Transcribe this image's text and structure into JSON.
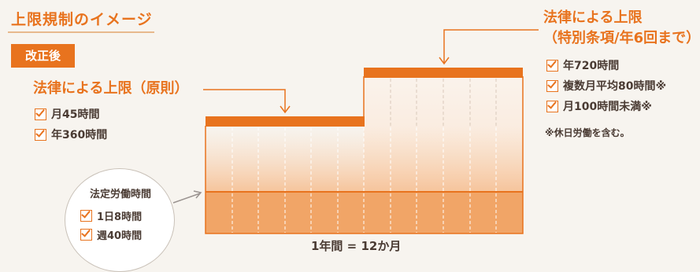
{
  "title": "上限規制のイメージ",
  "badge": "改正後",
  "principle": {
    "heading": "法律による上限（原則）",
    "items": [
      "月45時間",
      "年360時間"
    ]
  },
  "special": {
    "heading_line1": "法律による上限",
    "heading_line2": "（特別条項/年6回まで）",
    "items": [
      "年720時間",
      "複数月平均80時間※",
      "月100時間未満※"
    ],
    "note": "※休日労働を含む。"
  },
  "statutory": {
    "title": "法定労働時間",
    "items": [
      "1日8時間",
      "週40時間"
    ]
  },
  "axis_label": "1年間 = 12か月",
  "colors": {
    "accent": "#e8731e",
    "statutory_fill": "#f1a567",
    "gradient_top": "#f9d9bd",
    "background": "#f7f4ef"
  },
  "months": 12
}
